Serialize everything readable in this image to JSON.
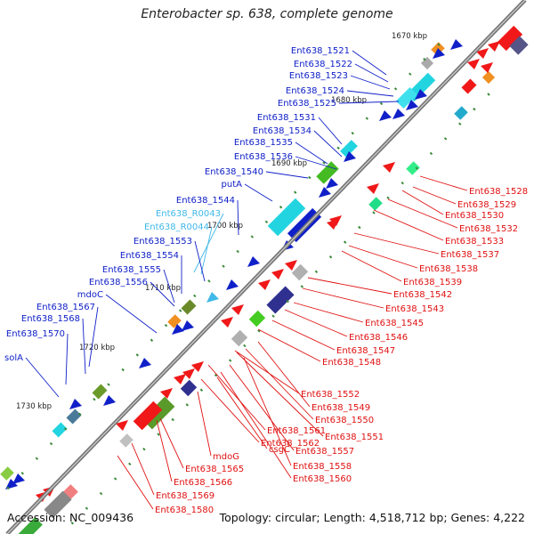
{
  "title": "Enterobacter sp. 638, complete genome",
  "footer": {
    "accession": "Accession: NC_009436",
    "summary": "Topology: circular; Length: 4,518,712 bp; Genes: 4,222"
  },
  "colors": {
    "backbone": "#777777",
    "tick": "#3a8a3a",
    "label_left": "#1020c8",
    "label_left_alt": "#40b8e8",
    "label_right": "#e01010"
  },
  "ruler": [
    {
      "label": "1670 kbp"
    },
    {
      "label": "1680 kbp"
    },
    {
      "label": "1690 kbp"
    },
    {
      "label": "1700 kbp"
    },
    {
      "label": "1710 kbp"
    },
    {
      "label": "1720 kbp"
    },
    {
      "label": "1730 kbp"
    }
  ],
  "left_labels": [
    {
      "text": "Ent638_1521",
      "alt": false
    },
    {
      "text": "Ent638_1522",
      "alt": false
    },
    {
      "text": "Ent638_1523",
      "alt": false
    },
    {
      "text": "Ent638_1524",
      "alt": false
    },
    {
      "text": "Ent638_1525",
      "alt": false
    },
    {
      "text": "Ent638_1531",
      "alt": false
    },
    {
      "text": "Ent638_1534",
      "alt": false
    },
    {
      "text": "Ent638_1535",
      "alt": false
    },
    {
      "text": "Ent638_1536",
      "alt": false
    },
    {
      "text": "Ent638_1540",
      "alt": false
    },
    {
      "text": "putA",
      "alt": false
    },
    {
      "text": "Ent638_1544",
      "alt": false
    },
    {
      "text": "Ent638_R0043",
      "alt": true
    },
    {
      "text": "Ent638_R0044",
      "alt": true
    },
    {
      "text": "Ent638_1553",
      "alt": false
    },
    {
      "text": "Ent638_1554",
      "alt": false
    },
    {
      "text": "Ent638_1555",
      "alt": false
    },
    {
      "text": "Ent638_1556",
      "alt": false
    },
    {
      "text": "mdoC",
      "alt": false
    },
    {
      "text": "Ent638_1567",
      "alt": false
    },
    {
      "text": "Ent638_1568",
      "alt": false
    },
    {
      "text": "Ent638_1570",
      "alt": false
    },
    {
      "text": "solA",
      "alt": false
    }
  ],
  "right_labels": [
    {
      "text": "Ent638_1528"
    },
    {
      "text": "Ent638_1529"
    },
    {
      "text": "Ent638_1530"
    },
    {
      "text": "Ent638_1532"
    },
    {
      "text": "Ent638_1533"
    },
    {
      "text": "Ent638_1537"
    },
    {
      "text": "Ent638_1538"
    },
    {
      "text": "Ent638_1539"
    },
    {
      "text": "Ent638_1542"
    },
    {
      "text": "Ent638_1543"
    },
    {
      "text": "Ent638_1545"
    },
    {
      "text": "Ent638_1546"
    },
    {
      "text": "Ent638_1547"
    },
    {
      "text": "Ent638_1548"
    },
    {
      "text": "Ent638_1552"
    },
    {
      "text": "Ent638_1549"
    },
    {
      "text": "Ent638_1550"
    },
    {
      "text": "Ent638_1551"
    },
    {
      "text": "Ent638_1561"
    },
    {
      "text": "csgC"
    },
    {
      "text": "Ent638_1557"
    },
    {
      "text": "Ent638_1558"
    },
    {
      "text": "Ent638_1562"
    },
    {
      "text": "Ent638_1560"
    },
    {
      "text": "mdoG"
    },
    {
      "text": "Ent638_1565"
    },
    {
      "text": "Ent638_1566"
    },
    {
      "text": "Ent638_1569"
    },
    {
      "text": "Ent638_1580"
    }
  ]
}
